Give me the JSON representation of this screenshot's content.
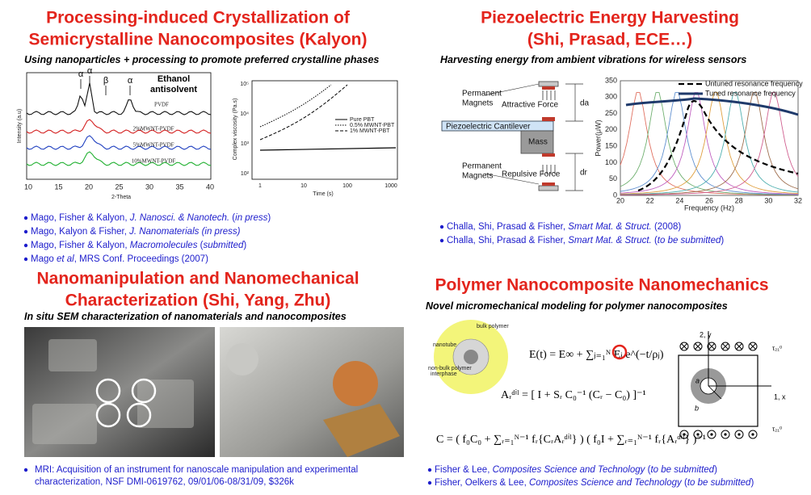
{
  "q1": {
    "title_lines": [
      "Processing-induced Crystallization of",
      "Semicrystalline Nanocomposites (Kalyon)"
    ],
    "subtitle": [
      {
        "text": "Using nanoparticles + processing to promote preferred crystalline phases"
      }
    ],
    "xrd": {
      "peaks": [
        "α",
        "α",
        "β",
        "α"
      ],
      "note_lines": [
        "Ethanol",
        "antisolvent"
      ],
      "curves": [
        "PVDF",
        "2%MWNT-PVDF",
        "5%MWNT-PVDF",
        "10%MWNT-PVDF"
      ],
      "xlabel": "2-Theta",
      "ylabel": "Intensity (a.u)",
      "xticks": [
        "10",
        "15",
        "20",
        "25",
        "30",
        "35",
        "40"
      ]
    },
    "viscosity": {
      "ylabel": "Complex viscosity (Pa.s)",
      "xlabel": "Time (s)",
      "legend": [
        "Pure PBT",
        "0.5% MWNT-PBT",
        "1% MWNT-PBT"
      ],
      "xticks": [
        "1",
        "10",
        "100",
        "1000"
      ],
      "yticks": [
        "10⁵",
        "10⁴",
        "10³",
        "10²"
      ]
    },
    "references": [
      {
        "parts": [
          {
            "text": "Mago, Fisher & Kalyon, "
          },
          {
            "text": "J. Nanosci. & Nanotech.",
            "italic": true
          },
          {
            "text": " ("
          },
          {
            "text": "in press",
            "italic": true
          },
          {
            "text": ")"
          }
        ]
      },
      {
        "parts": [
          {
            "text": "Mago, Kalyon & Fisher, "
          },
          {
            "text": "J. Nanomaterials (in press)",
            "italic": true
          }
        ]
      },
      {
        "parts": [
          {
            "text": "Mago, Fisher & Kalyon, "
          },
          {
            "text": "Macromolecules",
            "italic": true
          },
          {
            "text": " ("
          },
          {
            "text": "submitted",
            "italic": true
          },
          {
            "text": ")"
          }
        ]
      },
      {
        "parts": [
          {
            "text": "Mago "
          },
          {
            "text": "et al",
            "italic": true
          },
          {
            "text": ", MRS Conf. Proceedings (2007)"
          }
        ]
      }
    ]
  },
  "q2": {
    "title_lines": [
      "Piezoelectric Energy Harvesting",
      "(Shi, Prasad, ECE…)"
    ],
    "subtitle": [
      {
        "text": "Harvesting energy from ambient vibrations for wireless sensors"
      }
    ],
    "diagram": {
      "magnets_top": [
        "Permanent",
        "Magnets"
      ],
      "attractive": "Attractive Force",
      "cantilever": "Piezoelectric Cantilever",
      "mass": "Mass",
      "magnets_bottom": [
        "Permanent",
        "Magnets"
      ],
      "repulsive": "Repulsive Force",
      "da": "da",
      "dr": "dr"
    },
    "plot": {
      "legend": [
        "Untuned resonance frequency",
        "Tuned resonance frequency"
      ],
      "ylabel": "Power(μW)",
      "xlabel": "Frequency (Hz)",
      "xticks": [
        "20",
        "22",
        "24",
        "26",
        "28",
        "30",
        "32"
      ],
      "yticks": [
        "350",
        "300",
        "250",
        "200",
        "150",
        "100",
        "50",
        "0"
      ]
    },
    "references": [
      {
        "parts": [
          {
            "text": "Challa, Shi, Prasad & Fisher, "
          },
          {
            "text": "Smart Mat. & Struct.",
            "italic": true
          },
          {
            "text": " (2008)"
          }
        ]
      },
      {
        "parts": [
          {
            "text": "Challa, Shi, Prasad & Fisher, "
          },
          {
            "text": "Smart Mat. & Struct.",
            "italic": true
          },
          {
            "text": " ("
          },
          {
            "text": "to be submitted",
            "italic": true
          },
          {
            "text": ")"
          }
        ]
      }
    ]
  },
  "q3": {
    "title_lines": [
      "Nanomanipulation and Nanomechanical",
      "Characterization (Shi, Yang, Zhu)"
    ],
    "subtitle": [
      {
        "text": "In situ",
        "italic": true
      },
      {
        "text": " SEM characterization of nanomaterials and nanocomposites"
      }
    ],
    "reference_lines": [
      "MRI: Acquisition of an instrument for nanoscale manipulation and experimental",
      "characterization, NSF DMI-0619762, 09/01/06-08/31/09, $326k"
    ]
  },
  "q4": {
    "title_lines": [
      "Polymer Nanocomposite Nanomechanics"
    ],
    "subtitle": [
      {
        "text": "Novel micromechanical modeling for polymer nanocomposites"
      }
    ],
    "inclusion": {
      "bulk": "bulk polymer",
      "nanotube": "nanotube",
      "interphase": [
        "non-bulk polymer",
        "interphase"
      ]
    },
    "formulas": [
      "E(t) = E∞ + ∑ⱼ₌₁ᴺ Eⱼ e^(−t/ρⱼ)",
      "Aᵣᵈⁱˡ = [ I + Sᵣ C₀⁻¹ (Cᵣ − C₀) ]⁻¹",
      "C = ( f₀C₀ + ∑ᵣ₌₁ᴺ⁻¹ fᵣ{CᵣAᵣᵈⁱˡ} ) ( f₀I + ∑ᵣ₌₁ᴺ⁻¹ fᵣ{Aᵣᵈⁱˡ} )⁻¹"
    ],
    "cell": {
      "y_axis": "2, y",
      "x_axis": "1, x",
      "a": "a",
      "b": "b",
      "tau_top": "τ₂₁⁰",
      "tau_bottom": "τ₂₁⁰"
    },
    "references": [
      {
        "parts": [
          {
            "text": "Fisher & Lee, "
          },
          {
            "text": "Composites Science and Technology",
            "italic": true
          },
          {
            "text": " ("
          },
          {
            "text": "to be submitted",
            "italic": true
          },
          {
            "text": ")"
          }
        ]
      },
      {
        "parts": [
          {
            "text": "Fisher, Oelkers & Lee, "
          },
          {
            "text": "Composites Science and Technology",
            "italic": true
          },
          {
            "text": " ("
          },
          {
            "text": "to be submitted",
            "italic": true
          },
          {
            "text": ")"
          }
        ]
      }
    ]
  }
}
